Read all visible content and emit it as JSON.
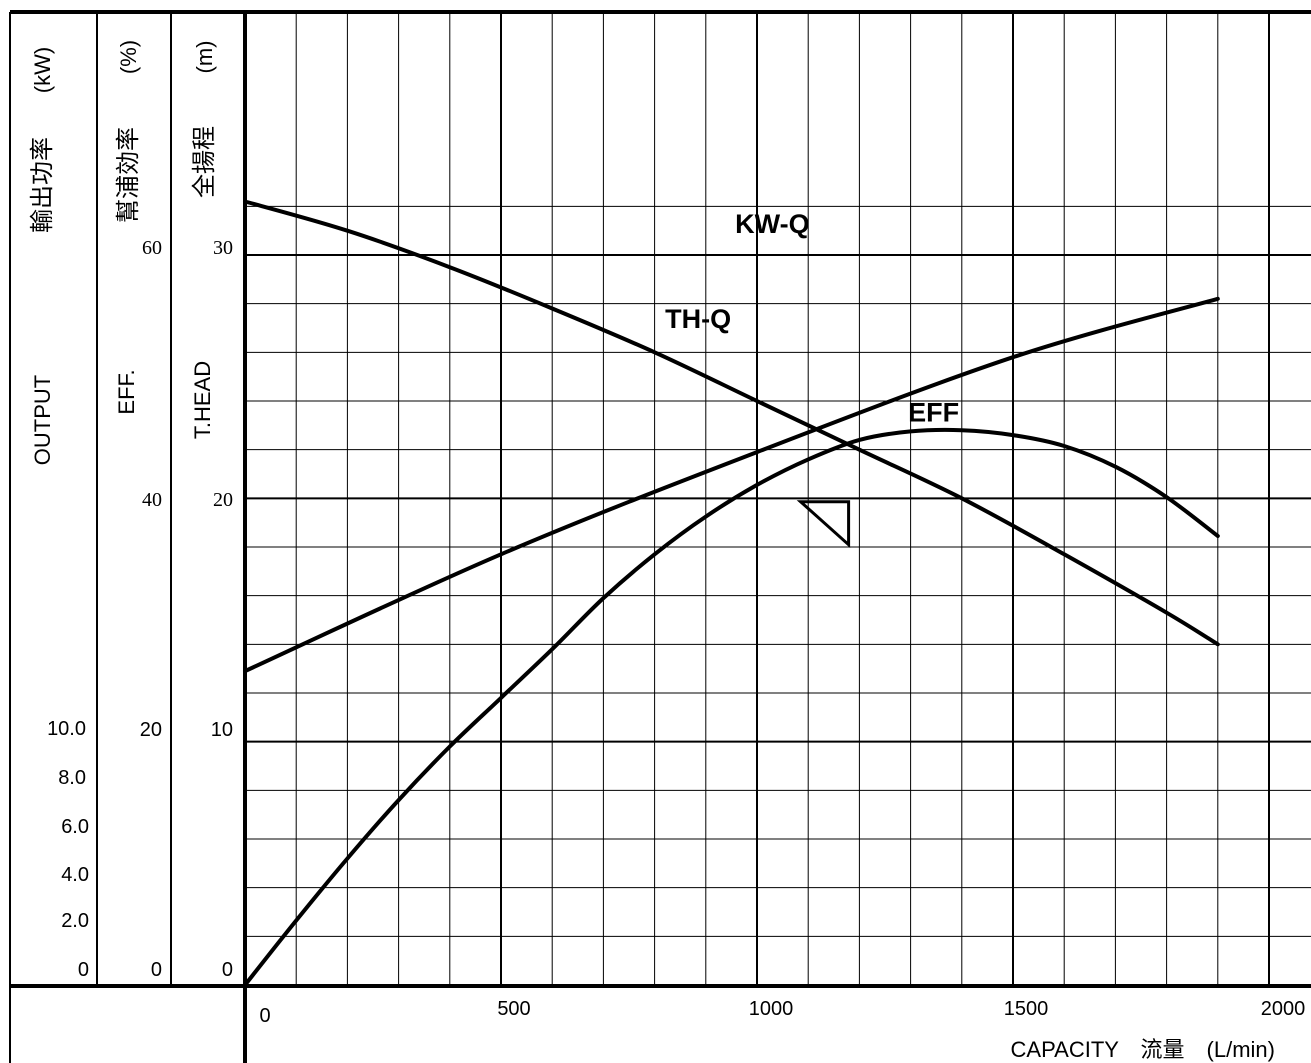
{
  "chart_data": {
    "type": "line",
    "x_label": "CAPACITY　流量　(L/min)",
    "x_ticks": [
      "0",
      "500",
      "1000",
      "1500",
      "2000"
    ],
    "x_range": [
      0,
      2000
    ],
    "axes": [
      {
        "name": "OUTPUT",
        "label_en": "OUTPUT",
        "label_jp": "輸出功率",
        "unit": "(kW)",
        "ticks": [
          "10.0",
          "8.0",
          "6.0",
          "4.0",
          "2.0",
          "0"
        ],
        "range": [
          0,
          10
        ]
      },
      {
        "name": "EFF.",
        "label_en": "EFF.",
        "label_jp": "幫浦効率",
        "unit": "(%)",
        "ticks": [
          "60",
          "40",
          "20",
          "0"
        ],
        "range": [
          0,
          60
        ]
      },
      {
        "name": "T.HEAD",
        "label_en": "T.HEAD",
        "label_jp": "全揚程",
        "unit": "(m)",
        "ticks": [
          "30",
          "20",
          "10",
          "0"
        ],
        "range": [
          0,
          30
        ]
      }
    ],
    "series": [
      {
        "name": "TH-Q",
        "axis": "T.HEAD",
        "x": [
          0,
          200,
          400,
          600,
          800,
          1000,
          1200,
          1400,
          1600,
          1800,
          1900
        ],
        "y": [
          32.2,
          31.0,
          29.5,
          27.8,
          26.0,
          24.0,
          22.0,
          20.0,
          17.7,
          15.3,
          14.0
        ]
      },
      {
        "name": "EFF",
        "axis": "EFF.",
        "x": [
          0,
          100,
          200,
          300,
          400,
          500,
          600,
          700,
          800,
          900,
          1000,
          1100,
          1200,
          1300,
          1400,
          1500,
          1600,
          1700,
          1800,
          1900
        ],
        "y": [
          0,
          5.3,
          10.4,
          15.2,
          19.6,
          23.6,
          27.6,
          31.8,
          35.4,
          38.5,
          41.1,
          43.2,
          44.8,
          45.5,
          45.6,
          45.2,
          44.3,
          42.6,
          40.1,
          36.9
        ]
      },
      {
        "name": "KW-Q",
        "axis": "OUTPUT",
        "x": [
          0,
          500,
          1000,
          1500,
          1900
        ],
        "y": [
          4.3,
          5.9,
          7.3,
          8.6,
          9.4
        ]
      }
    ],
    "annotations": [
      {
        "text": "TH-Q",
        "x": 885,
        "y": 27.0
      },
      {
        "text": "EFF",
        "x": 1345,
        "y": 46.3
      },
      {
        "text": "KW-Q",
        "x": 1030,
        "y": 10.3
      }
    ],
    "duty_point": {
      "x": 1175,
      "y": 18.3
    },
    "grid": true
  }
}
